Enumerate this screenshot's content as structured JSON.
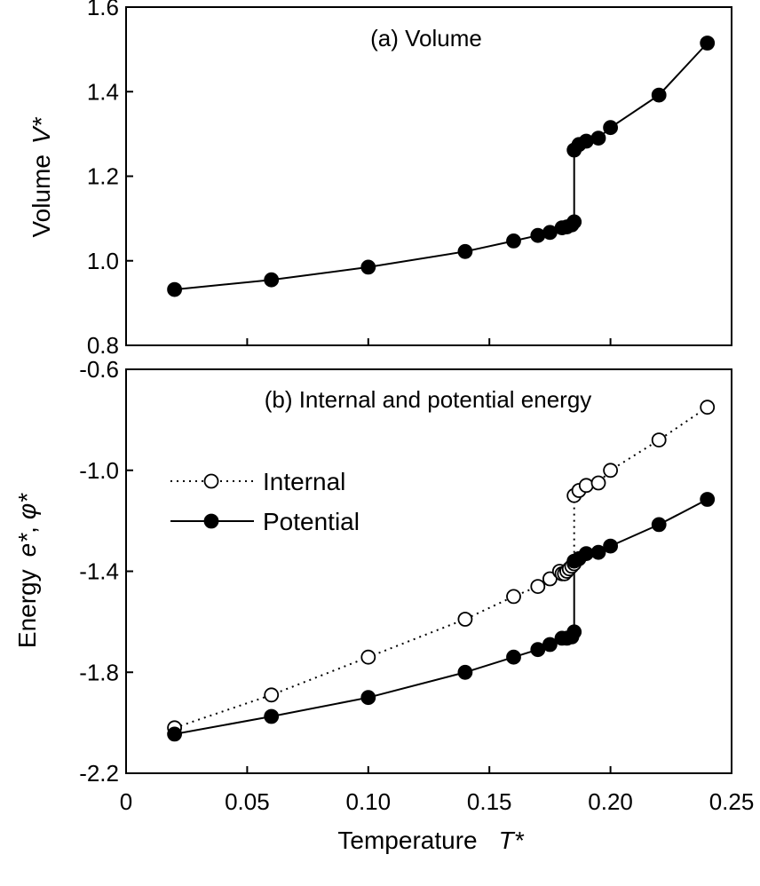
{
  "chart_data": [
    {
      "type": "line",
      "title": "(a) Volume",
      "ylabel": "Volume",
      "ylabel_symbol": "V*",
      "ylim": [
        0.8,
        1.6
      ],
      "yticks": [
        "0.8",
        "1.0",
        "1.2",
        "1.4",
        "1.6"
      ],
      "xlim": [
        0,
        0.25
      ],
      "series": [
        {
          "marker": "filled-circle",
          "line": "solid",
          "x": [
            0.02,
            0.06,
            0.1,
            0.14,
            0.16,
            0.17,
            0.175,
            0.18,
            0.182,
            0.184,
            0.185,
            0.185,
            0.187,
            0.19,
            0.195,
            0.2,
            0.22,
            0.24
          ],
          "y": [
            0.932,
            0.955,
            0.985,
            1.022,
            1.047,
            1.06,
            1.067,
            1.078,
            1.08,
            1.085,
            1.092,
            1.262,
            1.275,
            1.283,
            1.29,
            1.315,
            1.392,
            1.515
          ]
        }
      ]
    },
    {
      "type": "line",
      "title": "(b) Internal and potential energy",
      "ylabel": "Energy",
      "ylabel_symbol_1": "e*",
      "ylabel_sep": ",",
      "ylabel_symbol_2": "φ*",
      "ylim": [
        -2.2,
        -0.6
      ],
      "yticks": [
        "-2.2",
        "-1.8",
        "-1.4",
        "-1.0",
        "-0.6"
      ],
      "xlim": [
        0,
        0.25
      ],
      "xticks": [
        "0",
        "0.05",
        "0.10",
        "0.15",
        "0.20",
        "0.25"
      ],
      "xlabel": "Temperature",
      "xlabel_symbol": "T*",
      "legend_placement": "upper-left",
      "series": [
        {
          "name": "Internal",
          "marker": "open-circle",
          "line": "dotted",
          "x": [
            0.02,
            0.06,
            0.1,
            0.14,
            0.16,
            0.17,
            0.175,
            0.179,
            0.18,
            0.181,
            0.182,
            0.183,
            0.184,
            0.185,
            0.185,
            0.187,
            0.19,
            0.195,
            0.2,
            0.22,
            0.24
          ],
          "y": [
            -2.02,
            -1.89,
            -1.74,
            -1.59,
            -1.5,
            -1.46,
            -1.43,
            -1.4,
            -1.41,
            -1.41,
            -1.4,
            -1.39,
            -1.38,
            -1.37,
            -1.1,
            -1.08,
            -1.06,
            -1.05,
            -1.0,
            -0.88,
            -0.75
          ]
        },
        {
          "name": "Potential",
          "marker": "filled-circle",
          "line": "solid",
          "x": [
            0.02,
            0.06,
            0.1,
            0.14,
            0.16,
            0.17,
            0.175,
            0.18,
            0.182,
            0.184,
            0.185,
            0.185,
            0.187,
            0.19,
            0.195,
            0.2,
            0.22,
            0.24
          ],
          "y": [
            -2.045,
            -1.975,
            -1.9,
            -1.8,
            -1.74,
            -1.71,
            -1.69,
            -1.665,
            -1.665,
            -1.66,
            -1.64,
            -1.36,
            -1.35,
            -1.33,
            -1.325,
            -1.3,
            -1.215,
            -1.115
          ]
        }
      ]
    }
  ]
}
